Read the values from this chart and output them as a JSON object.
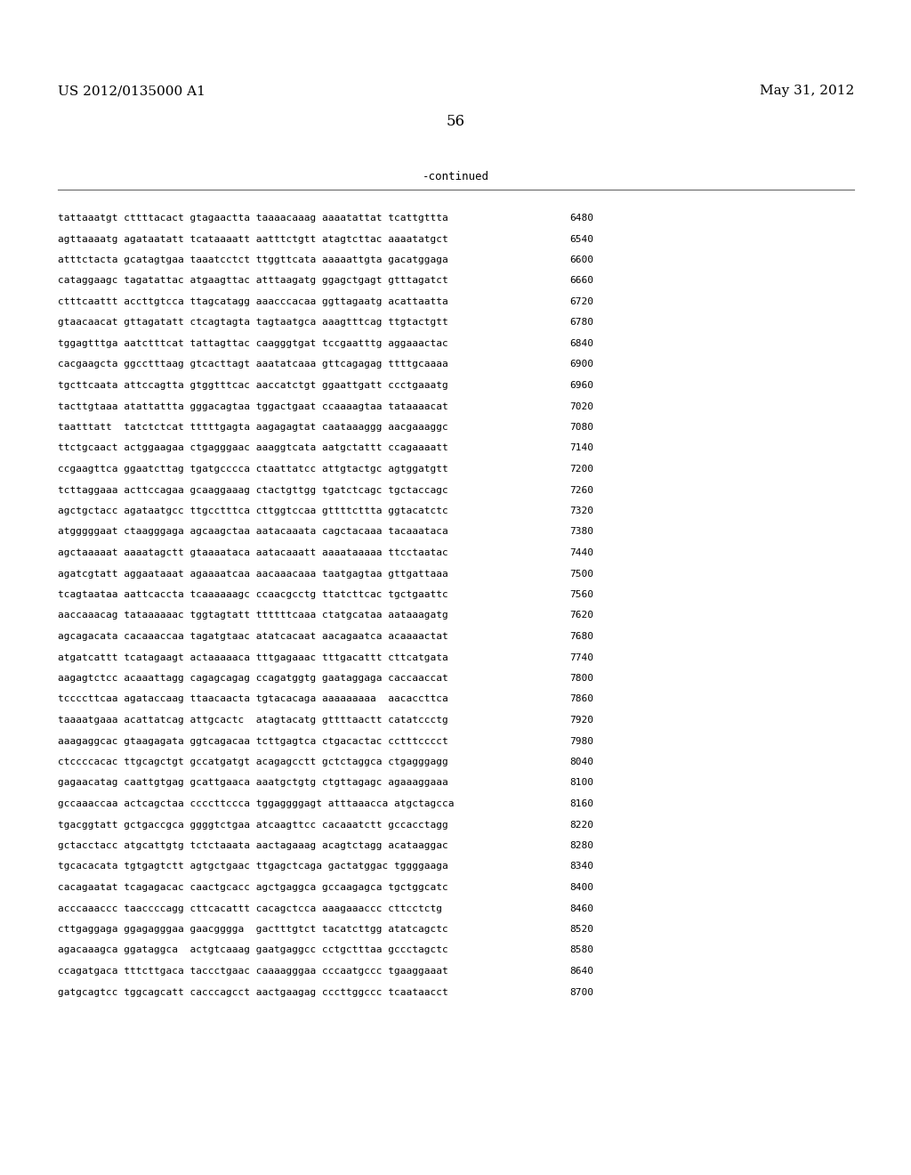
{
  "header_left": "US 2012/0135000 A1",
  "header_right": "May 31, 2012",
  "page_number": "56",
  "continued_label": "-continued",
  "background_color": "#ffffff",
  "text_color": "#000000",
  "font_size_header": 11,
  "font_size_body": 8.0,
  "font_size_page": 12,
  "sequence_lines": [
    [
      "tattaaatgt cttttacact gtagaactta taaaacaaag aaaatattat tcattgttta",
      "6480"
    ],
    [
      "agttaaaatg agataatatt tcataaaatt aatttctgtt atagtcttac aaaatatgct",
      "6540"
    ],
    [
      "atttctacta gcatagtgaa taaatcctct ttggttcata aaaaattgta gacatggaga",
      "6600"
    ],
    [
      "cataggaagc tagatattac atgaagttac atttaagatg ggagctgagt gtttagatct",
      "6660"
    ],
    [
      "ctttcaattt accttgtcca ttagcatagg aaacccacaa ggttagaatg acattaatta",
      "6720"
    ],
    [
      "gtaacaacat gttagatatt ctcagtagta tagtaatgca aaagtttcag ttgtactgtt",
      "6780"
    ],
    [
      "tggagtttga aatctttcat tattagttac caagggtgat tccgaatttg aggaaactac",
      "6840"
    ],
    [
      "cacgaagcta ggcctttaag gtcacttagt aaatatcaaa gttcagagag ttttgcaaaa",
      "6900"
    ],
    [
      "tgcttcaata attccagtta gtggtttcac aaccatctgt ggaattgatt ccctgaaatg",
      "6960"
    ],
    [
      "tacttgtaaa atattattta gggacagtaa tggactgaat ccaaaagtaa tataaaacat",
      "7020"
    ],
    [
      "taatttatt  tatctctcat tttttgagta aagagagtat caataaaggg aacgaaaggc",
      "7080"
    ],
    [
      "ttctgcaact actggaagaa ctgagggaac aaaggtcata aatgctattt ccagaaaatt",
      "7140"
    ],
    [
      "ccgaagttca ggaatcttag tgatgcccca ctaattatcc attgtactgc agtggatgtt",
      "7200"
    ],
    [
      "tcttaggaaa acttccagaa gcaaggaaag ctactgttgg tgatctcagc tgctaccagc",
      "7260"
    ],
    [
      "agctgctacc agataatgcc ttgcctttca cttggtccaa gttttcttta ggtacatctc",
      "7320"
    ],
    [
      "atgggggaat ctaagggaga agcaagctaa aatacaaata cagctacaaa tacaaataca",
      "7380"
    ],
    [
      "agctaaaaat aaaatagctt gtaaaataca aatacaaatt aaaataaaaa ttcctaatac",
      "7440"
    ],
    [
      "agatcgtatt aggaataaat agaaaatcaa aacaaacaaa taatgagtaa gttgattaaa",
      "7500"
    ],
    [
      "tcagtaataa aattcaccta tcaaaaaagc ccaacgcctg ttatcttcac tgctgaattc",
      "7560"
    ],
    [
      "aaccaaacag tataaaaaac tggtagtatt ttttttcaaa ctatgcataa aataaagatg",
      "7620"
    ],
    [
      "agcagacata cacaaaccaa tagatgtaac atatcacaat aacagaatca acaaaactat",
      "7680"
    ],
    [
      "atgatcattt tcatagaagt actaaaaaca tttgagaaac tttgacattt cttcatgata",
      "7740"
    ],
    [
      "aagagtctcc acaaattagg cagagcagag ccagatggtg gaataggaga caccaaccat",
      "7800"
    ],
    [
      "tccccttcaa agataccaag ttaacaacta tgtacacaga aaaaaaaaa  aacaccttca",
      "7860"
    ],
    [
      "taaaatgaaa acattatcag attgcactc  atagtacatg gttttaactt catatccctg",
      "7920"
    ],
    [
      "aaagaggcac gtaagagata ggtcagacaa tcttgagtca ctgacactac cctttcccct",
      "7980"
    ],
    [
      "ctccccacac ttgcagctgt gccatgatgt acagagcctt gctctaggca ctgagggagg",
      "8040"
    ],
    [
      "gagaacatag caattgtgag gcattgaaca aaatgctgtg ctgttagagc agaaaggaaa",
      "8100"
    ],
    [
      "gccaaaccaa actcagctaa ccccttccca tggaggggagt atttaaacca atgctagcca",
      "8160"
    ],
    [
      "tgacggtatt gctgaccgca ggggtctgaa atcaagttcc cacaaatctt gccacctagg",
      "8220"
    ],
    [
      "gctacctacc atgcattgtg tctctaaata aactagaaag acagtctagg acataaggac",
      "8280"
    ],
    [
      "tgcacacata tgtgagtctt agtgctgaac ttgagctcaga gactatggac tggggaaga",
      "8340"
    ],
    [
      "cacagaatat tcagagacac caactgcacc agctgaggca gccaagagca tgctggcatc",
      "8400"
    ],
    [
      "acccaaaccc taaccccagg cttcacattt cacagctcca aaagaaaccc cttcctctg",
      "8460"
    ],
    [
      "cttgaggaga ggagagggaa gaacgggga  gactttgtct tacatcttgg atatcagctc",
      "8520"
    ],
    [
      "agacaaagca ggataggca  actgtcaaag gaatgaggcc cctgctttaa gccctagctc",
      "8580"
    ],
    [
      "ccagatgaca tttcttgaca taccctgaac caaaagggaa cccaatgccc tgaaggaaat",
      "8640"
    ],
    [
      "gatgcagtcc tggcagcatt cacccagcct aactgaagag cccttggccc tcaataacct",
      "8700"
    ]
  ]
}
